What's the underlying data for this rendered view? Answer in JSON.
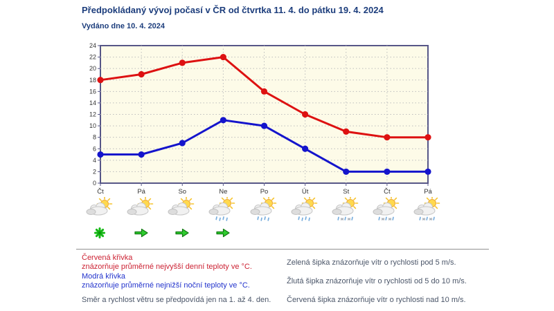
{
  "page": {
    "title": "Předpokládaný vývoj počasí v ČR od čtvrtka 11. 4. do pátku 19. 4. 2024",
    "issued": "Vydáno dne 10. 4. 2024"
  },
  "colors": {
    "title_navy": "#1c3d7c",
    "red_series": "#dd1111",
    "blue_series": "#1414cc",
    "green_wind": "#2fcc2f",
    "plot_bg": "#fdfbe8",
    "plot_border": "#565687",
    "grid": "#bcbcbc",
    "axis_text": "#333333",
    "legend_red": "#cc2233",
    "legend_blue": "#2233cc",
    "legend_dark": "#4a5568",
    "separator": "#9a9a9a"
  },
  "chart_data": {
    "type": "line",
    "categories": [
      "Čt",
      "Pá",
      "So",
      "Ne",
      "Po",
      "Út",
      "St",
      "Čt",
      "Pá"
    ],
    "series": [
      {
        "key": "max-temp",
        "name": "Průměrné nejvyšší denní teploty ve °C",
        "color": "#dd1111",
        "values": [
          18,
          19,
          21,
          22,
          16,
          12,
          9,
          8,
          8
        ]
      },
      {
        "key": "min-temp",
        "name": "Průměrné nejnižší noční teploty ve °C",
        "color": "#1414cc",
        "values": [
          5,
          5,
          7,
          11,
          10,
          6,
          2,
          2,
          2
        ]
      }
    ],
    "title": "",
    "xlabel": "",
    "ylabel": "",
    "ylim": [
      0,
      24
    ],
    "y_ticks": [
      0,
      2,
      4,
      6,
      8,
      10,
      12,
      14,
      16,
      18,
      20,
      22,
      24
    ],
    "grid": true,
    "legend_position": "below-as-text"
  },
  "forecast": {
    "days": [
      {
        "day": "Čt",
        "icon": "sun-cloud",
        "wind": "green-star"
      },
      {
        "day": "Pá",
        "icon": "sun-cloud",
        "wind": "green-arrow-right"
      },
      {
        "day": "So",
        "icon": "sun-cloud",
        "wind": "green-arrow-right"
      },
      {
        "day": "Ne",
        "icon": "sun-cloud-rain",
        "wind": "green-arrow-right"
      },
      {
        "day": "Po",
        "icon": "sun-cloud-rain",
        "wind": null
      },
      {
        "day": "Út",
        "icon": "sun-cloud-rain",
        "wind": null
      },
      {
        "day": "St",
        "icon": "sun-cloud-sleet",
        "wind": null
      },
      {
        "day": "Čt",
        "icon": "sun-cloud-sleet",
        "wind": null
      },
      {
        "day": "Pá",
        "icon": "sun-cloud-sleet",
        "wind": null
      }
    ]
  },
  "legend": {
    "red_title": "Červená křivka",
    "red_desc": "znázorňuje průměrné nejvyšší denní teploty ve °C.",
    "blue_title": "Modrá křivka",
    "blue_desc": "znázorňuje průměrné nejnižší noční teploty ve °C.",
    "wind_note": "Směr a rychlost větru se předpovídá jen na 1. až 4. den.",
    "green_arrow_desc": "Zelená šipka znázorňuje vítr o rychlosti pod 5 m/s.",
    "yellow_arrow_desc": "Žlutá šipka znázorňuje vítr o rychlosti od 5 do 10 m/s.",
    "red_arrow_desc": "Červená šipka znázorňuje vítr o rychlosti nad 10 m/s."
  }
}
